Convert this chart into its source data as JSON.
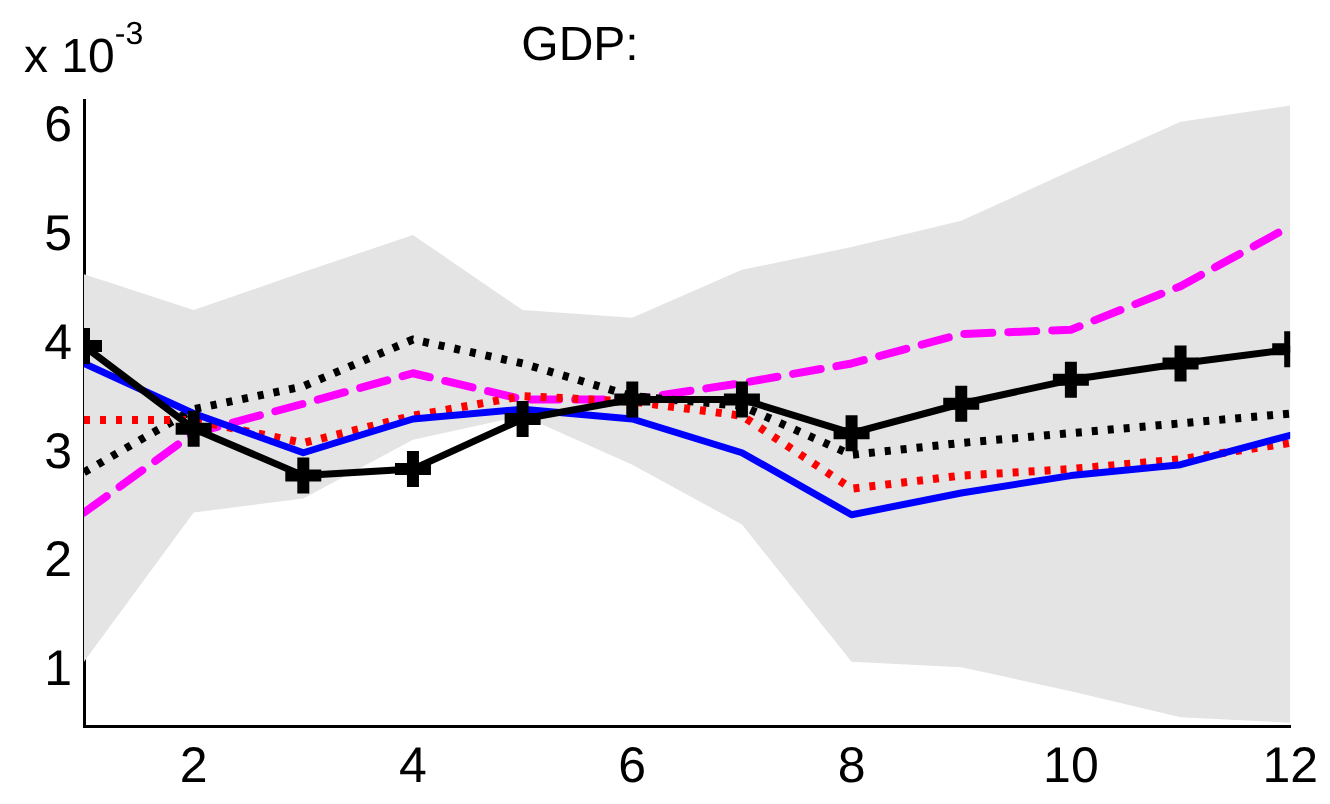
{
  "chart_data": {
    "type": "line",
    "title": "GDP:",
    "ylabel": "x 10$^{-3}$",
    "x": [
      1,
      2,
      3,
      4,
      5,
      6,
      7,
      8,
      9,
      10,
      11,
      12
    ],
    "xlim": [
      1,
      12
    ],
    "xticks": [
      2,
      4,
      6,
      8,
      10,
      12
    ],
    "ylim": [
      0.5,
      6.25
    ],
    "yticks": [
      1,
      2,
      3,
      4,
      5,
      6
    ],
    "grid": false,
    "legend": false,
    "series": [
      {
        "color": "#000000",
        "marker": "cross",
        "line_style": "solid",
        "values": [
          3.99,
          3.23,
          2.8,
          2.86,
          3.32,
          3.5,
          3.5,
          3.19,
          3.46,
          3.68,
          3.83,
          3.96
        ],
        "lower": [
          1.09,
          2.46,
          2.59,
          3.13,
          3.35,
          2.9,
          2.35,
          1.09,
          1.04,
          0.82,
          0.58,
          0.53
        ],
        "upper": [
          4.65,
          4.32,
          4.67,
          5.01,
          4.32,
          4.25,
          4.69,
          4.9,
          5.14,
          5.6,
          6.05,
          6.2
        ]
      },
      {
        "color": "#0000ff",
        "marker": "none",
        "line_style": "solid",
        "values": [
          3.83,
          3.37,
          3.01,
          3.32,
          3.41,
          3.32,
          3.01,
          2.44,
          2.64,
          2.8,
          2.9,
          3.17
        ]
      },
      {
        "color": "#ff0000",
        "marker": "none",
        "line_style": "dotted",
        "values": [
          3.31,
          3.31,
          3.1,
          3.35,
          3.53,
          3.48,
          3.35,
          2.68,
          2.8,
          2.86,
          2.95,
          3.1
        ]
      },
      {
        "color": "#000000",
        "marker": "none",
        "line_style": "dotted",
        "values": [
          2.83,
          3.41,
          3.62,
          4.05,
          3.83,
          3.53,
          3.44,
          2.99,
          3.1,
          3.19,
          3.28,
          3.37
        ]
      },
      {
        "color": "#ff00ff",
        "marker": "none",
        "line_style": "dashed",
        "values": [
          2.46,
          3.19,
          3.46,
          3.74,
          3.5,
          3.5,
          3.65,
          3.83,
          4.1,
          4.14,
          4.54,
          5.09
        ]
      }
    ]
  }
}
